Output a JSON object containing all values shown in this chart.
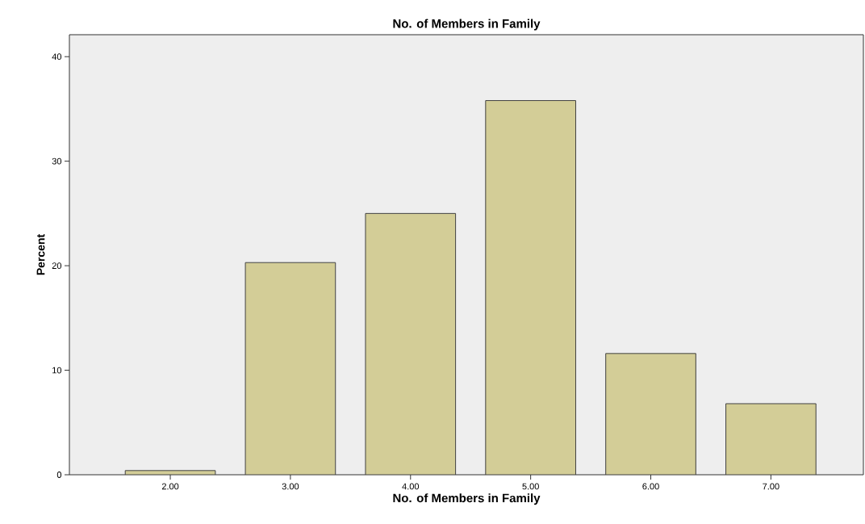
{
  "chart_data": {
    "type": "bar",
    "title": "No. of Members in Family",
    "xlabel": "No. of Members in Family",
    "ylabel": "Percent",
    "categories": [
      "2.00",
      "3.00",
      "4.00",
      "5.00",
      "6.00",
      "7.00"
    ],
    "values": [
      0.4,
      20.3,
      25.0,
      35.8,
      11.6,
      6.8
    ],
    "color": "#d3cd97",
    "ylim": [
      0,
      42.1
    ],
    "yticks": [
      0,
      10,
      20,
      30,
      40
    ],
    "grid": false
  }
}
